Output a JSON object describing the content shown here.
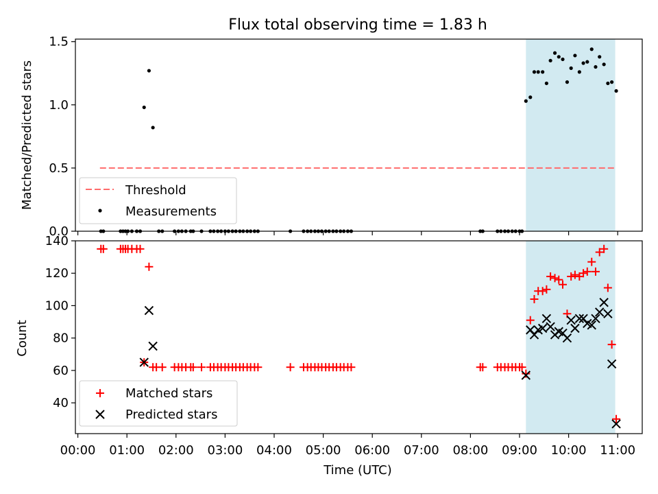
{
  "figure": {
    "title": "Flux total observing time = 1.83 h",
    "xlabel": "Time (UTC)",
    "xticks": [
      "00:00",
      "01:00",
      "02:00",
      "03:00",
      "04:00",
      "05:00",
      "06:00",
      "07:00",
      "08:00",
      "09:00",
      "10:00",
      "11:00"
    ]
  },
  "chart_data": [
    {
      "type": "scatter",
      "panel": "top",
      "ylabel": "Matched/Predicted stars",
      "xlim_hours": [
        -0.05,
        11.5
      ],
      "ylim": [
        0,
        1.52
      ],
      "yticks": [
        "0.0",
        "0.5",
        "1.0",
        "1.5"
      ],
      "threshold": {
        "name": "Threshold",
        "value": 0.5,
        "x_range_hours": [
          0.45,
          10.95
        ],
        "color": "#ff6b6b"
      },
      "highlight_span_hours": [
        9.13,
        10.95
      ],
      "highlight_color": "#add8e6",
      "legend": {
        "position": "lower left",
        "entries": [
          "Threshold",
          "Measurements"
        ]
      },
      "series": [
        {
          "name": "Measurements",
          "color": "#000000",
          "x_hours": [
            0.47,
            0.52,
            0.87,
            0.92,
            0.97,
            1.02,
            1.1,
            1.2,
            1.27,
            1.35,
            1.45,
            1.53,
            1.65,
            1.72,
            1.97,
            2.05,
            2.12,
            2.2,
            2.3,
            2.35,
            2.52,
            2.7,
            2.77,
            2.85,
            2.92,
            3.0,
            3.07,
            3.15,
            3.22,
            3.3,
            3.37,
            3.45,
            3.52,
            3.6,
            3.67,
            4.33,
            4.6,
            4.68,
            4.75,
            4.83,
            4.9,
            4.97,
            5.05,
            5.12,
            5.2,
            5.27,
            5.35,
            5.42,
            5.5,
            5.57,
            8.2,
            8.25,
            8.55,
            8.62,
            8.7,
            8.77,
            8.85,
            8.92,
            9.0,
            9.05,
            9.13,
            9.22,
            9.3,
            9.38,
            9.47,
            9.55,
            9.63,
            9.72,
            9.8,
            9.88,
            9.97,
            10.05,
            10.13,
            10.22,
            10.3,
            10.38,
            10.47,
            10.55,
            10.63,
            10.72,
            10.8,
            10.88,
            10.97
          ],
          "y": [
            0,
            0,
            0,
            0,
            0,
            0,
            0,
            0,
            0,
            0.98,
            1.27,
            0.82,
            0,
            0,
            0,
            0,
            0,
            0,
            0,
            0,
            0,
            0,
            0,
            0,
            0,
            0,
            0,
            0,
            0,
            0,
            0,
            0,
            0,
            0,
            0,
            0,
            0,
            0,
            0,
            0,
            0,
            0,
            0,
            0,
            0,
            0,
            0,
            0,
            0,
            0,
            0,
            0,
            0,
            0,
            0,
            0,
            0,
            0,
            0,
            0,
            1.03,
            1.06,
            1.26,
            1.26,
            1.26,
            1.17,
            1.35,
            1.41,
            1.38,
            1.36,
            1.18,
            1.29,
            1.39,
            1.26,
            1.33,
            1.34,
            1.44,
            1.3,
            1.38,
            1.32,
            1.17,
            1.18,
            1.11
          ]
        }
      ]
    },
    {
      "type": "scatter",
      "panel": "bottom",
      "ylabel": "Count",
      "xlim_hours": [
        -0.05,
        11.5
      ],
      "ylim": [
        21,
        140
      ],
      "yticks": [
        "40",
        "60",
        "80",
        "100",
        "120",
        "140"
      ],
      "highlight_span_hours": [
        9.13,
        10.95
      ],
      "highlight_color": "#add8e6",
      "legend": {
        "position": "lower left",
        "entries": [
          "Matched stars",
          "Predicted stars"
        ]
      },
      "series": [
        {
          "name": "Matched stars",
          "marker": "plus",
          "color": "#ff0000",
          "x_hours": [
            0.47,
            0.52,
            0.87,
            0.92,
            0.97,
            1.02,
            1.1,
            1.2,
            1.27,
            1.35,
            1.45,
            1.53,
            1.6,
            1.72,
            1.97,
            2.05,
            2.12,
            2.2,
            2.3,
            2.35,
            2.52,
            2.7,
            2.77,
            2.85,
            2.92,
            3.0,
            3.07,
            3.15,
            3.22,
            3.3,
            3.37,
            3.45,
            3.52,
            3.6,
            3.67,
            4.33,
            4.6,
            4.68,
            4.75,
            4.83,
            4.9,
            4.97,
            5.05,
            5.12,
            5.2,
            5.27,
            5.35,
            5.42,
            5.5,
            5.57,
            8.2,
            8.25,
            8.55,
            8.62,
            8.7,
            8.77,
            8.85,
            8.92,
            9.0,
            9.05,
            9.13,
            9.22,
            9.3,
            9.38,
            9.47,
            9.55,
            9.63,
            9.72,
            9.8,
            9.88,
            9.97,
            10.05,
            10.13,
            10.22,
            10.3,
            10.38,
            10.47,
            10.55,
            10.63,
            10.72,
            10.8,
            10.88,
            10.97
          ],
          "y": [
            135,
            135,
            135,
            135,
            135,
            135,
            135,
            135,
            135,
            65,
            124,
            62,
            62,
            62,
            62,
            62,
            62,
            62,
            62,
            62,
            62,
            62,
            62,
            62,
            62,
            62,
            62,
            62,
            62,
            62,
            62,
            62,
            62,
            62,
            62,
            62,
            62,
            62,
            62,
            62,
            62,
            62,
            62,
            62,
            62,
            62,
            62,
            62,
            62,
            62,
            62,
            62,
            62,
            62,
            62,
            62,
            62,
            62,
            62,
            62,
            58,
            91,
            104,
            109,
            109,
            110,
            118,
            117,
            116,
            113,
            95,
            118,
            119,
            118,
            120,
            121,
            127,
            121,
            133,
            135,
            111,
            76,
            30
          ]
        },
        {
          "name": "Predicted stars",
          "marker": "x",
          "color": "#000000",
          "x_hours": [
            1.35,
            1.45,
            1.53,
            9.13,
            9.22,
            9.3,
            9.38,
            9.47,
            9.55,
            9.63,
            9.72,
            9.8,
            9.88,
            9.97,
            10.05,
            10.13,
            10.22,
            10.3,
            10.38,
            10.47,
            10.55,
            10.63,
            10.72,
            10.8,
            10.88,
            10.97
          ],
          "y": [
            65,
            97,
            75,
            57,
            85,
            82,
            85,
            86,
            92,
            87,
            82,
            84,
            83,
            80,
            91,
            86,
            92,
            92,
            89,
            88,
            92,
            96,
            102,
            95,
            64,
            27
          ]
        }
      ]
    }
  ]
}
